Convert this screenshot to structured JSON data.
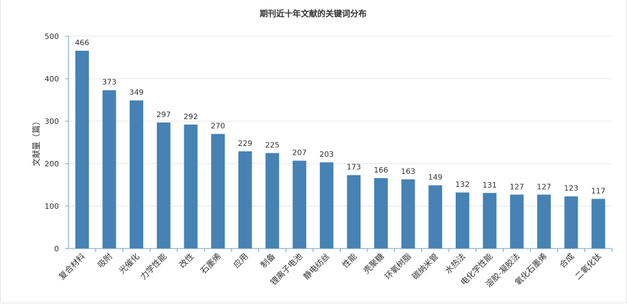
{
  "chart_data": {
    "type": "bar",
    "title": "期刊近十年文献的关键词分布",
    "xlabel": "",
    "ylabel": "文献量（篇）",
    "ylim": [
      0,
      500
    ],
    "yticks": [
      0,
      100,
      200,
      300,
      400,
      500
    ],
    "grid": true,
    "bar_color": "#4682b4",
    "categories": [
      "复合材料",
      "吸附",
      "光催化",
      "力学性能",
      "改性",
      "石墨烯",
      "应用",
      "制备",
      "锂离子电池",
      "静电纺丝",
      "性能",
      "壳聚糖",
      "环氧树脂",
      "碳纳米管",
      "水热法",
      "电化学性能",
      "溶胶-凝胶法",
      "氧化石墨烯",
      "合成",
      "二氧化钛"
    ],
    "values": [
      466,
      373,
      349,
      297,
      292,
      270,
      229,
      225,
      207,
      203,
      173,
      166,
      163,
      149,
      132,
      131,
      127,
      127,
      123,
      117
    ]
  }
}
